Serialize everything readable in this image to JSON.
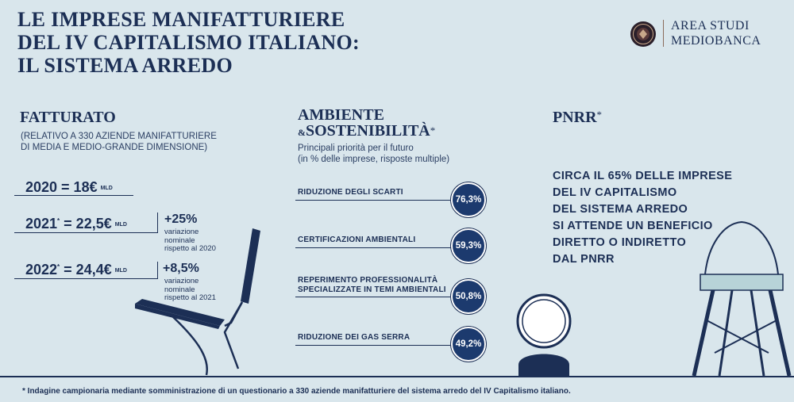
{
  "title": {
    "line1": "LE IMPRESE MANIFATTURIERE",
    "line2": "DEL IV CAPITALISMO ITALIANO:",
    "line3": "IL SISTEMA ARREDO"
  },
  "logo": {
    "line1": "AREA STUDI",
    "line2": "MEDIOBANCA",
    "seal_icon": "mediobanca-seal-icon"
  },
  "fatturato": {
    "heading": "FATTURATO",
    "sub1": "(RELATIVO A 330 AZIENDE MANIFATTURIERE",
    "sub2": "DI MEDIA E MEDIO-GRANDE DIMENSIONE)",
    "rows": [
      {
        "year": "2020",
        "star": "",
        "value": " = 18€",
        "unit": "MLD"
      },
      {
        "year": "2021",
        "star": "*",
        "value": " = 22,5€",
        "unit": "MLD"
      },
      {
        "year": "2022",
        "star": "*",
        "value": " = 24,4€",
        "unit": "MLD"
      }
    ],
    "variations": [
      {
        "pct": "+25%",
        "l1": "variazione",
        "l2": "nominale",
        "l3": "rispetto al 2020"
      },
      {
        "pct": "+8,5%",
        "l1": "variazione",
        "l2": "nominale",
        "l3": "rispetto al 2021"
      }
    ]
  },
  "ambiente": {
    "heading1": "AMBIENTE",
    "heading2_amp": "&",
    "heading2": "SOSTENIBILITÀ",
    "heading2_star": "*",
    "sub1": "Principali priorità per il futuro",
    "sub2": "(in % delle imprese, risposte multiple)",
    "items": [
      {
        "l1": "RIDUZIONE DEGLI SCARTI",
        "l2": "",
        "value": "76,3%"
      },
      {
        "l1": "CERTIFICAZIONI AMBIENTALI",
        "l2": "",
        "value": "59,3%"
      },
      {
        "l1": "REPERIMENTO PROFESSIONALITÀ",
        "l2": "SPECIALIZZATE IN TEMI AMBIENTALI",
        "value": "50,8%"
      },
      {
        "l1": "RIDUZIONE DEI GAS SERRA",
        "l2": "",
        "value": "49,2%"
      }
    ]
  },
  "pnrr": {
    "heading": "PNRR",
    "heading_star": "*",
    "lines": [
      "CIRCA IL 65% DELLE IMPRESE",
      "DEL IV CAPITALISMO",
      "DEL SISTEMA ARREDO",
      "SI ATTENDE UN BENEFICIO",
      "DIRETTO O INDIRETTO",
      "DAL PNRR"
    ]
  },
  "illustrations": [
    "lounge-chair-icon",
    "spherical-lamp-icon",
    "dining-chair-icon"
  ],
  "colors": {
    "background": "#d9e6ec",
    "navy": "#1c2f55",
    "circle": "#1c3a6e",
    "seat": "#b7d3d8"
  },
  "footnote": "* Indagine campionaria mediante somministrazione di un questionario a 330 aziende manifatturiere del sistema arredo del IV Capitalismo italiano."
}
